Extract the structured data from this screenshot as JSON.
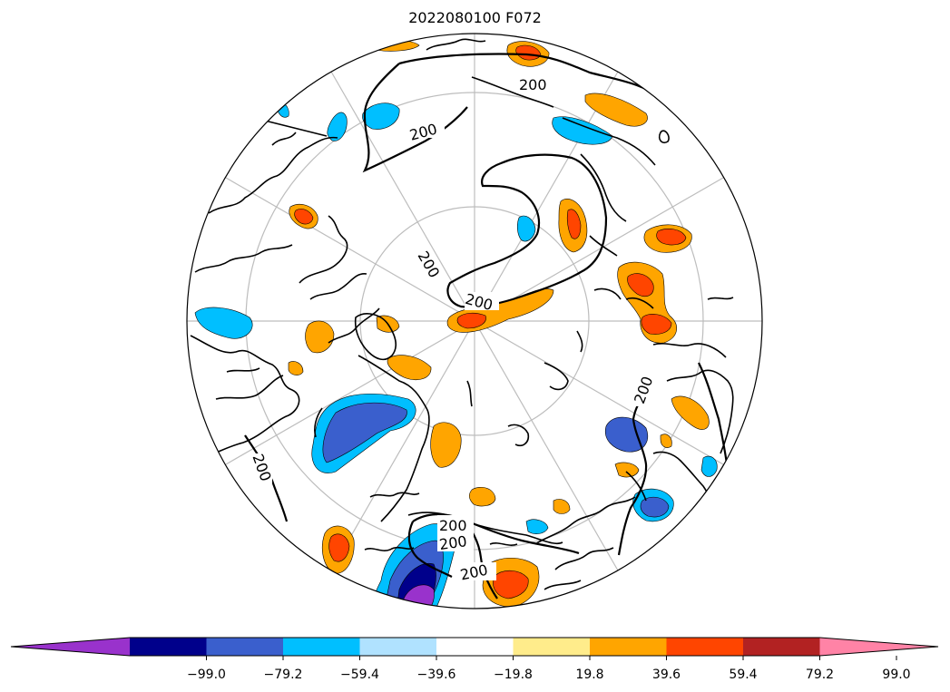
{
  "title": "2022080100 F072",
  "contour_label": "200",
  "contour_labels": [
    "200",
    "200",
    "200",
    "200",
    "200",
    "200",
    "200",
    "200",
    "200"
  ],
  "colorbar": {
    "colors": [
      "#9932CC",
      "#00008B",
      "#3A5FCD",
      "#00BFFF",
      "#B0E2FF",
      "#FFFFFF",
      "#FFEC8B",
      "#FFA500",
      "#FF4500",
      "#B22222",
      "#FF83A6"
    ],
    "ticks": [
      "−99.0",
      "−79.2",
      "−59.4",
      "−39.6",
      "−19.8",
      "19.8",
      "39.6",
      "59.4",
      "79.2",
      "99.0"
    ]
  }
}
